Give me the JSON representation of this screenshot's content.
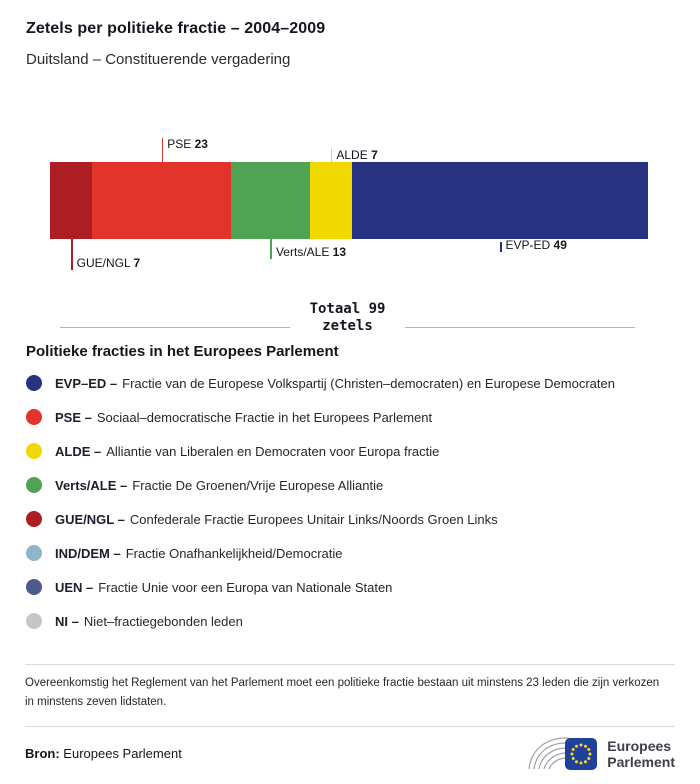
{
  "header": {
    "title": "Zetels per politieke fractie – 2004–2009",
    "subtitle": "Duitsland – Constituerende vergadering"
  },
  "chart_data": {
    "type": "bar",
    "variant": "horizontal-stacked",
    "total": 99,
    "total_label": "Totaal 99",
    "total_sublabel": "zetels",
    "legend_position": "below",
    "grid": false,
    "segments": [
      {
        "id": "gue-ngl",
        "name": "GUE/NGL",
        "value": 7,
        "color": "#ad1d24",
        "label_position": "below",
        "tier": 2
      },
      {
        "id": "pse",
        "name": "PSE",
        "value": 23,
        "color": "#e2342b",
        "label_position": "above",
        "tier": 2
      },
      {
        "id": "verts-ale",
        "name": "Verts/ALE",
        "value": 13,
        "color": "#4fa353",
        "label_position": "below",
        "tier": 1
      },
      {
        "id": "alde",
        "name": "ALDE",
        "value": 7,
        "color": "#f1d900",
        "label_position": "above",
        "tier": 1
      },
      {
        "id": "evp-ed",
        "name": "EVP-ED",
        "value": 49,
        "color": "#273380",
        "label_position": "below",
        "tier": 0
      }
    ]
  },
  "legend": {
    "heading": "Politieke fracties in het Europees Parlement",
    "items": [
      {
        "id": "evp-ed",
        "abbr": "EVP–ED –",
        "desc": "Fractie van de Europese Volkspartij (Christen–democraten) en Europese Democraten",
        "color": "#273380"
      },
      {
        "id": "pse",
        "abbr": "PSE –",
        "desc": "Sociaal–democratische Fractie in het Europees Parlement",
        "color": "#e2342b"
      },
      {
        "id": "alde",
        "abbr": "ALDE –",
        "desc": "Alliantie van Liberalen en Democraten voor Europa fractie",
        "color": "#f1d900"
      },
      {
        "id": "verts-ale",
        "abbr": "Verts/ALE –",
        "desc": "Fractie De Groenen/Vrije Europese Alliantie",
        "color": "#4fa353"
      },
      {
        "id": "gue-ngl",
        "abbr": "GUE/NGL –",
        "desc": "Confederale Fractie Europees Unitair Links/Noords Groen Links",
        "color": "#ad1d24"
      },
      {
        "id": "ind-dem",
        "abbr": "IND/DEM –",
        "desc": "Fractie Onafhankelijkheid/Democratie",
        "color": "#8fb5c9"
      },
      {
        "id": "uen",
        "abbr": "UEN –",
        "desc": "Fractie Unie voor een Europa van Nationale Staten",
        "color": "#4c5a8e"
      },
      {
        "id": "ni",
        "abbr": "NI –",
        "desc": "Niet–fractiegebonden leden",
        "color": "#c6c6c6"
      }
    ]
  },
  "footnote": "Overeenkomstig het Reglement van het Parlement moet een politieke fractie bestaan uit minstens 23 leden die zijn verkozen in minstens zeven lidstaten.",
  "source": {
    "label": "Bron:",
    "value": "Europees Parlement"
  },
  "logo": {
    "line1": "Europees",
    "line2": "Parlement"
  },
  "icons": {
    "logo_mark": "eu-parliament-hemicycle-flag"
  }
}
